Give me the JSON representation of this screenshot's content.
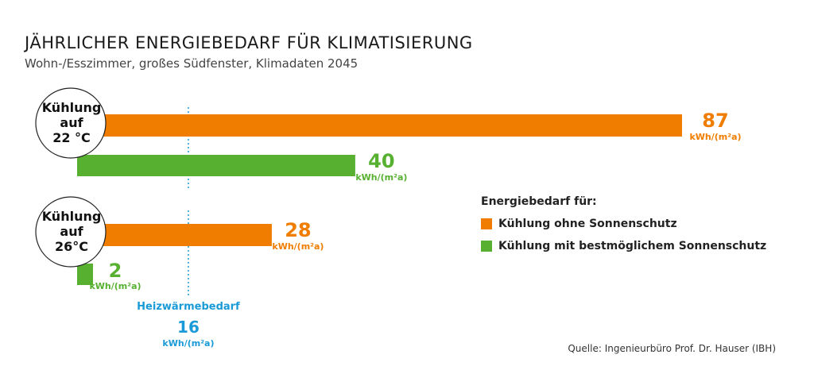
{
  "header": {
    "title": "JÄHRLICHER ENERGIEBEDARF FÜR KLIMATISIERUNG",
    "subtitle": "Wohn-/Esszimmer, großes Südfenster, Klimadaten 2045"
  },
  "chart_data": {
    "type": "bar",
    "orientation": "horizontal",
    "title": "JÄHRLICHER ENERGIEBEDARF FÜR KLIMATISIERUNG",
    "subtitle": "Wohn-/Esszimmer, großes Südfenster, Klimadaten 2045",
    "unit": "kWh/(m²a)",
    "categories": [
      [
        "Kühlung",
        "auf",
        "22 °C"
      ],
      [
        "Kühlung",
        "auf",
        "26°C"
      ]
    ],
    "series": [
      {
        "name": "Kühlung ohne Sonnenschutz",
        "color": "#f07d00",
        "values": [
          87,
          28
        ]
      },
      {
        "name": "Kühlung mit bestmöglichem Sonnenschutz",
        "color": "#57b030",
        "values": [
          40,
          2
        ]
      }
    ],
    "reference_line": {
      "label": "Heizwärmebedarf",
      "value": 16,
      "unit": "kWh/(m²a)",
      "color": "#1a9ad6",
      "style": "dotted"
    },
    "xlim": [
      0,
      87
    ],
    "grid": false,
    "legend": {
      "title": "Energiebedarf für:",
      "placement": "right"
    }
  },
  "source": "Quelle: Ingenieurbüro Prof. Dr. Hauser (IBH)"
}
